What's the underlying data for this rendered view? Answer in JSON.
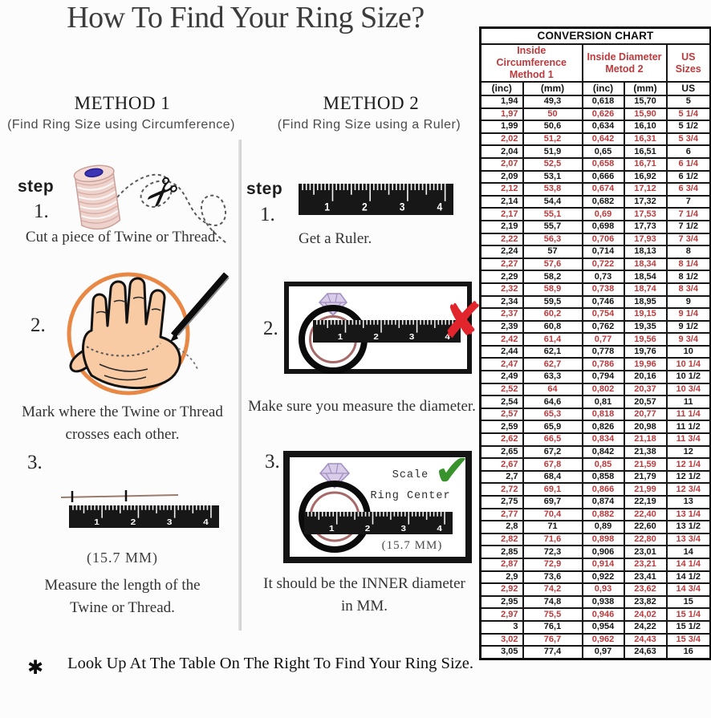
{
  "page": {
    "title": "How To Find Your Ring Size?"
  },
  "method1": {
    "heading": "METHOD 1",
    "subheading": "(Find Ring Size using Circumference)",
    "step_label": "step",
    "step1_num": "1.",
    "step1_caption": "Cut a piece of Twine or Thread.",
    "step2_num": "2.",
    "step2_caption_line1": "Mark where the Twine or Thread",
    "step2_caption_line2": "crosses each other.",
    "step3_num": "3.",
    "step3_measurement": "(15.7 MM)",
    "step3_caption_line1": "Measure the length of the",
    "step3_caption_line2": "Twine or Thread."
  },
  "method2": {
    "heading": "METHOD 2",
    "subheading": "(Find Ring Size using a Ruler)",
    "step_label": "step",
    "step1_num": "1.",
    "step1_caption": "Get a Ruler.",
    "step2_num": "2.",
    "step2_caption": "Make sure you measure the diameter.",
    "step3_num": "3.",
    "scale_label_line1": "Scale",
    "scale_label_line2": "Ring Center",
    "step3_measurement": "(15.7 MM)",
    "step3_caption_line1": "It should be the INNER diameter",
    "step3_caption_line2": "in MM."
  },
  "ruler": {
    "numbers": [
      "1",
      "2",
      "3",
      "4"
    ]
  },
  "footnote": {
    "star": "✱",
    "text": "Look Up At The Table On The Right To Find Your Ring Size."
  },
  "conversion_table": {
    "title": "CONVERSION CHART",
    "group_headers": [
      {
        "line1": "Inside Circumference",
        "line2": "Method 1"
      },
      {
        "line1": "Inside Diameter",
        "line2": "Metod 2"
      },
      {
        "line1": "US Sizes",
        "line2": ""
      }
    ],
    "sub_headers": [
      "(inc)",
      "(mm)",
      "(inc)",
      "(mm)",
      "US"
    ],
    "colors": {
      "red": "#bd3a3c",
      "black": "#161616"
    },
    "rows": [
      [
        "1,94",
        "49,3",
        "0,618",
        "15,70",
        "5"
      ],
      [
        "1,97",
        "50",
        "0,626",
        "15,90",
        "5 1/4"
      ],
      [
        "1,99",
        "50,6",
        "0,634",
        "16,10",
        "5 1/2"
      ],
      [
        "2,02",
        "51,2",
        "0,642",
        "16,31",
        "5 3/4"
      ],
      [
        "2,04",
        "51,9",
        "0,65",
        "16,51",
        "6"
      ],
      [
        "2,07",
        "52,5",
        "0,658",
        "16,71",
        "6 1/4"
      ],
      [
        "2,09",
        "53,1",
        "0,666",
        "16,92",
        "6 1/2"
      ],
      [
        "2,12",
        "53,8",
        "0,674",
        "17,12",
        "6 3/4"
      ],
      [
        "2,14",
        "54,4",
        "0,682",
        "17,32",
        "7"
      ],
      [
        "2,17",
        "55,1",
        "0,69",
        "17,53",
        "7 1/4"
      ],
      [
        "2,19",
        "55,7",
        "0,698",
        "17,73",
        "7 1/2"
      ],
      [
        "2,22",
        "56,3",
        "0,706",
        "17,93",
        "7 3/4"
      ],
      [
        "2,24",
        "57",
        "0,714",
        "18,13",
        "8"
      ],
      [
        "2,27",
        "57,6",
        "0,722",
        "18,34",
        "8 1/4"
      ],
      [
        "2,29",
        "58,2",
        "0,73",
        "18,54",
        "8 1/2"
      ],
      [
        "2,32",
        "58,9",
        "0,738",
        "18,74",
        "8 3/4"
      ],
      [
        "2,34",
        "59,5",
        "0,746",
        "18,95",
        "9"
      ],
      [
        "2,37",
        "60,2",
        "0,754",
        "19,15",
        "9 1/4"
      ],
      [
        "2,39",
        "60,8",
        "0,762",
        "19,35",
        "9 1/2"
      ],
      [
        "2,42",
        "61,4",
        "0,77",
        "19,56",
        "9 3/4"
      ],
      [
        "2,44",
        "62,1",
        "0,778",
        "19,76",
        "10"
      ],
      [
        "2,47",
        "62,7",
        "0,786",
        "19,96",
        "10 1/4"
      ],
      [
        "2,49",
        "63,3",
        "0,794",
        "20,16",
        "10 1/2"
      ],
      [
        "2,52",
        "64",
        "0,802",
        "20,37",
        "10 3/4"
      ],
      [
        "2,54",
        "64,6",
        "0,81",
        "20,57",
        "11"
      ],
      [
        "2,57",
        "65,3",
        "0,818",
        "20,77",
        "11 1/4"
      ],
      [
        "2,59",
        "65,9",
        "0,826",
        "20,98",
        "11 1/2"
      ],
      [
        "2,62",
        "66,5",
        "0,834",
        "21,18",
        "11 3/4"
      ],
      [
        "2,65",
        "67,2",
        "0,842",
        "21,38",
        "12"
      ],
      [
        "2,67",
        "67,8",
        "0,85",
        "21,59",
        "12 1/4"
      ],
      [
        "2,7",
        "68,4",
        "0,858",
        "21,79",
        "12 1/2"
      ],
      [
        "2,72",
        "69,1",
        "0,866",
        "21,99",
        "12 3/4"
      ],
      [
        "2,75",
        "69,7",
        "0,874",
        "22,19",
        "13"
      ],
      [
        "2,77",
        "70,4",
        "0,882",
        "22,40",
        "13 1/4"
      ],
      [
        "2,8",
        "71",
        "0,89",
        "22,60",
        "13 1/2"
      ],
      [
        "2,82",
        "71,6",
        "0,898",
        "22,80",
        "13 3/4"
      ],
      [
        "2,85",
        "72,3",
        "0,906",
        "23,01",
        "14"
      ],
      [
        "2,87",
        "72,9",
        "0,914",
        "23,21",
        "14 1/4"
      ],
      [
        "2,9",
        "73,6",
        "0,922",
        "23,41",
        "14 1/2"
      ],
      [
        "2,92",
        "74,2",
        "0,93",
        "23,62",
        "14 3/4"
      ],
      [
        "2,95",
        "74,8",
        "0,938",
        "23,82",
        "15"
      ],
      [
        "2,97",
        "75,5",
        "0,946",
        "24,02",
        "15 1/4"
      ],
      [
        "3",
        "76,1",
        "0,954",
        "24,22",
        "15 1/2"
      ],
      [
        "3,02",
        "76,7",
        "0,962",
        "24,43",
        "15 3/4"
      ],
      [
        "3,05",
        "77,4",
        "0,97",
        "24,63",
        "16"
      ]
    ]
  }
}
